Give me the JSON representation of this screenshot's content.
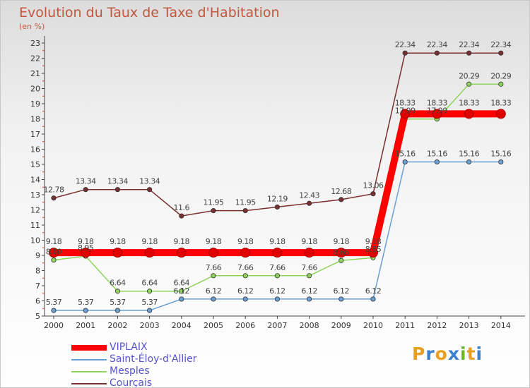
{
  "title": "Evolution du Taux de Taxe d'Habitation",
  "subtitle": "(en %)",
  "logo_text": "Proxiti",
  "chart_data": {
    "type": "line",
    "x": [
      "2000",
      "2001",
      "2002",
      "2003",
      "2004",
      "2005",
      "2006",
      "2007",
      "2008",
      "2009",
      "2010",
      "2011",
      "2012",
      "2013",
      "2014"
    ],
    "ylim": [
      5,
      23
    ],
    "yticks": [
      5,
      6,
      7,
      8,
      9,
      10,
      11,
      12,
      13,
      14,
      15,
      16,
      17,
      18,
      19,
      20,
      21,
      22,
      23
    ],
    "grid": false,
    "legend_position": "bottom-left",
    "series": [
      {
        "name": "VIPLAIX",
        "color": "#ff0000",
        "thick": true,
        "values": [
          9.18,
          9.18,
          9.18,
          9.18,
          9.18,
          9.18,
          9.18,
          9.18,
          9.18,
          9.18,
          9.18,
          18.33,
          18.33,
          18.33,
          18.33
        ],
        "labels": [
          "9.18",
          "9.18",
          "9.18",
          "9.18",
          "9.18",
          "9.18",
          "9.18",
          "9.18",
          "9.18",
          "9.18",
          "9.18",
          "18.33",
          "18.33",
          "18.33",
          "18.33"
        ]
      },
      {
        "name": "Saint-Éloy-d'Allier",
        "color": "#6a9fd4",
        "thick": false,
        "values": [
          5.37,
          5.37,
          5.37,
          5.37,
          6.12,
          6.12,
          6.12,
          6.12,
          6.12,
          6.12,
          6.12,
          15.16,
          15.16,
          15.16,
          15.16
        ],
        "labels": [
          "5.37",
          "5.37",
          "5.37",
          "5.37",
          "6.12",
          "6.12",
          "6.12",
          "6.12",
          "6.12",
          "6.12",
          "6.12",
          "15.16",
          "15.16",
          "15.16",
          "15.16"
        ]
      },
      {
        "name": "Mesples",
        "color": "#8fd45a",
        "thick": false,
        "values": [
          8.69,
          8.95,
          6.64,
          6.64,
          6.64,
          7.66,
          7.66,
          7.66,
          7.66,
          8.66,
          8.85,
          17.99,
          17.99,
          20.29,
          20.29
        ],
        "labels": [
          "8.69",
          "8.95",
          "6.64",
          "6.64",
          "6.64",
          "7.66",
          "7.66",
          "7.66",
          "7.66",
          "8.66",
          "8.85",
          "17.99",
          "17.99",
          "20.29",
          "20.29"
        ]
      },
      {
        "name": "Courçais",
        "color": "#7a3030",
        "thick": false,
        "values": [
          12.78,
          13.34,
          13.34,
          13.34,
          11.6,
          11.95,
          11.95,
          12.19,
          12.43,
          12.68,
          13.06,
          22.34,
          22.34,
          22.34,
          22.34
        ],
        "labels": [
          "12.78",
          "13.34",
          "13.34",
          "13.34",
          "11.6",
          "11.95",
          "11.95",
          "12.19",
          "12.43",
          "12.68",
          "13.06",
          "22.34",
          "22.34",
          "22.34",
          "22.34"
        ]
      }
    ]
  }
}
